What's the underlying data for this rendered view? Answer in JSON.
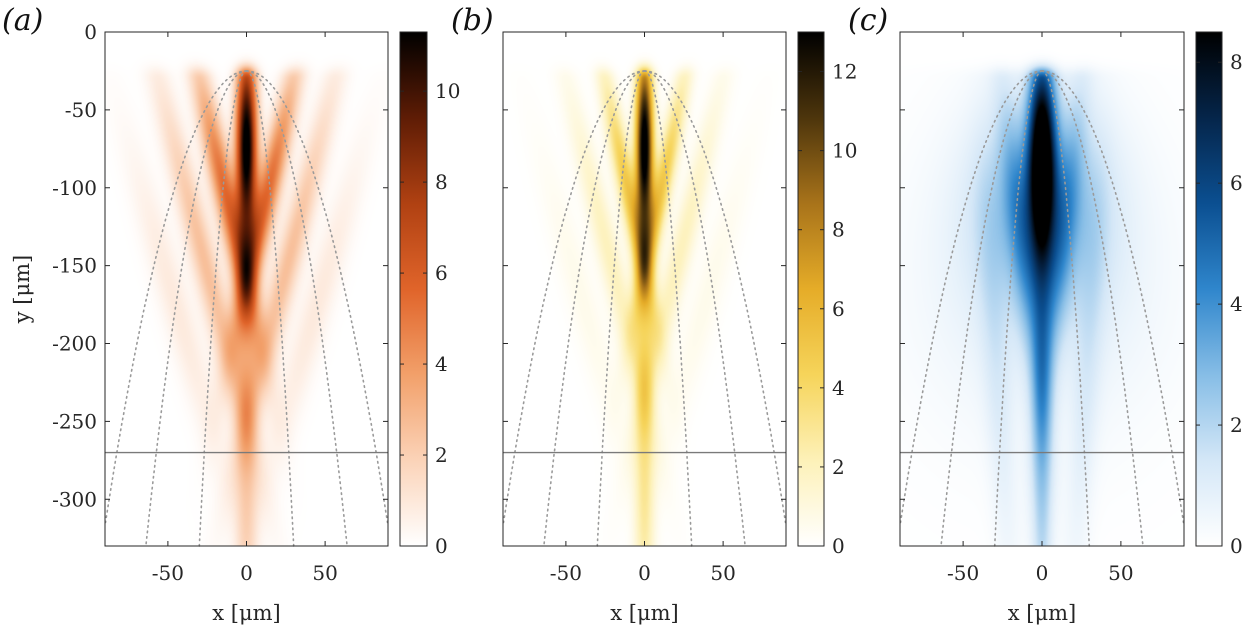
{
  "chart_data": [
    {
      "type": "heatmap",
      "panel_label": "(a)",
      "xlabel": "x [μm]",
      "ylabel": "y [μm]",
      "xlim": [
        -90,
        90
      ],
      "ylim": [
        -330,
        0
      ],
      "xticks": [
        -50,
        0,
        50
      ],
      "xtick_labels": [
        "-50",
        "0",
        "50"
      ],
      "yticks": [
        0,
        -50,
        -100,
        -150,
        -200,
        -250,
        -300
      ],
      "ytick_labels": [
        "0",
        "-50",
        "-100",
        "-150",
        "-200",
        "-250",
        "-300"
      ],
      "colormap": [
        "#ffffff",
        "#fbd3b8",
        "#f2a06a",
        "#e0642a",
        "#b04112",
        "#5e1c05",
        "#000000"
      ],
      "clim": [
        0,
        11.3
      ],
      "colorbar_ticks": [
        0,
        2,
        4,
        6,
        8,
        10
      ],
      "colorbar_tick_labels": [
        "0",
        "2",
        "4",
        "6",
        "8",
        "10"
      ],
      "peak": {
        "x": 0,
        "y": -72,
        "value": 11.3
      },
      "horizontal_line_y": -270,
      "lobes": [
        {
          "x0": 0,
          "y0": -72,
          "sx": 4.5,
          "sy": 42,
          "amp": 11.3,
          "slope": 0
        },
        {
          "x0": 12,
          "y0": -110,
          "sx": 5.5,
          "sy": 60,
          "amp": 5.5,
          "slope": 0.22
        },
        {
          "x0": -12,
          "y0": -110,
          "sx": 5.5,
          "sy": 60,
          "amp": 5.5,
          "slope": -0.22
        },
        {
          "x0": 26,
          "y0": -150,
          "sx": 6,
          "sy": 80,
          "amp": 2.6,
          "slope": 0.25
        },
        {
          "x0": -26,
          "y0": -150,
          "sx": 6,
          "sy": 80,
          "amp": 2.6,
          "slope": -0.25
        },
        {
          "x0": 0,
          "y0": -240,
          "sx": 5,
          "sy": 120,
          "amp": 2.3,
          "slope": 0
        },
        {
          "x0": 45,
          "y0": -175,
          "sx": 7,
          "sy": 70,
          "amp": 0.9,
          "slope": 0.28
        },
        {
          "x0": -45,
          "y0": -175,
          "sx": 7,
          "sy": 70,
          "amp": 0.9,
          "slope": -0.28
        }
      ]
    },
    {
      "type": "heatmap",
      "panel_label": "(b)",
      "xlabel": "x [μm]",
      "ylabel": "",
      "xlim": [
        -90,
        90
      ],
      "ylim": [
        -330,
        0
      ],
      "xticks": [
        -50,
        0,
        50
      ],
      "xtick_labels": [
        "-50",
        "0",
        "50"
      ],
      "yticks": [
        0,
        -50,
        -100,
        -150,
        -200,
        -250,
        -300
      ],
      "ytick_labels": [],
      "colormap": [
        "#ffffff",
        "#fdf1b8",
        "#f6d45a",
        "#e5ac28",
        "#a8731a",
        "#4d350c",
        "#000000"
      ],
      "clim": [
        0,
        13
      ],
      "colorbar_ticks": [
        0,
        2,
        4,
        6,
        8,
        10,
        12
      ],
      "colorbar_tick_labels": [
        "0",
        "2",
        "4",
        "6",
        "8",
        "10",
        "12"
      ],
      "peak": {
        "x": 0,
        "y": -72,
        "value": 13
      },
      "horizontal_line_y": -270,
      "lobes": [
        {
          "x0": 0,
          "y0": -72,
          "sx": 3.8,
          "sy": 40,
          "amp": 13,
          "slope": 0
        },
        {
          "x0": 10,
          "y0": -105,
          "sx": 4.5,
          "sy": 55,
          "amp": 5.0,
          "slope": 0.2
        },
        {
          "x0": -10,
          "y0": -105,
          "sx": 4.5,
          "sy": 55,
          "amp": 5.0,
          "slope": -0.2
        },
        {
          "x0": 22,
          "y0": -145,
          "sx": 5.5,
          "sy": 75,
          "amp": 2.0,
          "slope": 0.24
        },
        {
          "x0": -22,
          "y0": -145,
          "sx": 5.5,
          "sy": 75,
          "amp": 2.0,
          "slope": -0.24
        },
        {
          "x0": 0,
          "y0": -240,
          "sx": 4.5,
          "sy": 120,
          "amp": 3.2,
          "slope": 0
        },
        {
          "x0": 40,
          "y0": -170,
          "sx": 7,
          "sy": 70,
          "amp": 0.6,
          "slope": 0.27
        },
        {
          "x0": -40,
          "y0": -170,
          "sx": 7,
          "sy": 70,
          "amp": 0.6,
          "slope": -0.27
        }
      ]
    },
    {
      "type": "heatmap",
      "panel_label": "(c)",
      "xlabel": "x [μm]",
      "ylabel": "",
      "xlim": [
        -90,
        90
      ],
      "ylim": [
        -330,
        0
      ],
      "xticks": [
        -50,
        0,
        50
      ],
      "xtick_labels": [
        "-50",
        "0",
        "50"
      ],
      "yticks": [
        0,
        -50,
        -100,
        -150,
        -200,
        -250,
        -300
      ],
      "ytick_labels": [],
      "colormap": [
        "#ffffff",
        "#d4e7f7",
        "#86bde6",
        "#2f86cc",
        "#0b4f91",
        "#05254a",
        "#000000"
      ],
      "clim": [
        0,
        8.5
      ],
      "colorbar_ticks": [
        0,
        2,
        4,
        6,
        8
      ],
      "colorbar_tick_labels": [
        "0",
        "2",
        "4",
        "6",
        "8"
      ],
      "peak": {
        "x": 0,
        "y": -75,
        "value": 8.5
      },
      "horizontal_line_y": -270,
      "lobes": [
        {
          "x0": 0,
          "y0": -78,
          "sx": 6,
          "sy": 45,
          "amp": 8.5,
          "slope": 0
        },
        {
          "x0": 0,
          "y0": -110,
          "sx": 28,
          "sy": 45,
          "amp": 2.8,
          "slope": 0
        },
        {
          "x0": 0,
          "y0": -160,
          "sx": 55,
          "sy": 70,
          "amp": 0.9,
          "slope": 0
        },
        {
          "x0": 12,
          "y0": -140,
          "sx": 6,
          "sy": 80,
          "amp": 1.6,
          "slope": 0.12
        },
        {
          "x0": -12,
          "y0": -140,
          "sx": 6,
          "sy": 80,
          "amp": 1.6,
          "slope": -0.12
        },
        {
          "x0": 0,
          "y0": -250,
          "sx": 4.5,
          "sy": 110,
          "amp": 2.4,
          "slope": 0
        },
        {
          "x0": 28,
          "y0": -230,
          "sx": 6,
          "sy": 90,
          "amp": 0.8,
          "slope": 0.06
        },
        {
          "x0": -28,
          "y0": -230,
          "sx": 6,
          "sy": 90,
          "amp": 0.8,
          "slope": -0.06
        }
      ]
    }
  ],
  "guides": {
    "color": "#9a9a9a",
    "line_color": "#7a7a7a",
    "parabolas": [
      {
        "vertex_y": -25,
        "half_width_at_bottom": 92
      },
      {
        "vertex_y": -25,
        "half_width_at_bottom": 64
      },
      {
        "vertex_y": -25,
        "half_width_at_bottom": 30
      }
    ]
  }
}
